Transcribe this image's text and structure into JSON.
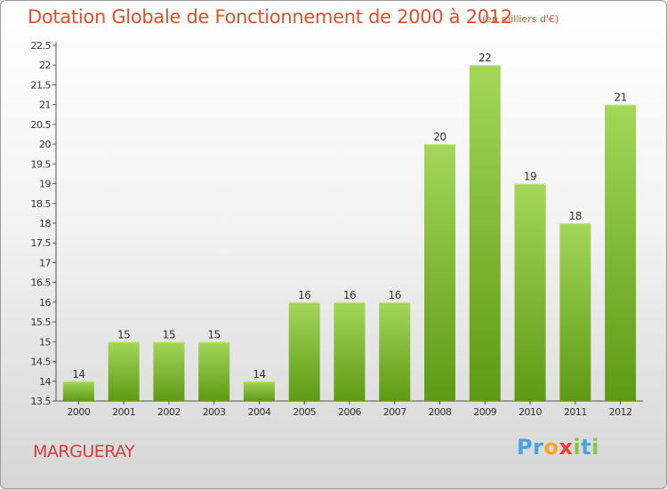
{
  "header": {
    "title": "Dotation Globale de Fonctionnement de 2000 à 2012",
    "subtitle": "(en milliers d'€)"
  },
  "footer": {
    "commune": "MARGUERAY",
    "logo_letters": [
      {
        "ch": "P",
        "color": "#4aa3df"
      },
      {
        "ch": "r",
        "color": "#4aa3df"
      },
      {
        "ch": "o",
        "color": "#f5a623"
      },
      {
        "ch": "x",
        "color": "#e8402a"
      },
      {
        "ch": "i",
        "color": "#8cc63f"
      },
      {
        "ch": "t",
        "color": "#4aa3df"
      },
      {
        "ch": "i",
        "color": "#8cc63f"
      }
    ]
  },
  "chart_data": {
    "type": "bar",
    "title": "Dotation Globale de Fonctionnement de 2000 à 2012",
    "subtitle": "(en milliers d'€)",
    "categories": [
      "2000",
      "2001",
      "2002",
      "2003",
      "2004",
      "2005",
      "2006",
      "2007",
      "2008",
      "2009",
      "2010",
      "2011",
      "2012"
    ],
    "values": [
      14,
      15,
      15,
      15,
      14,
      16,
      16,
      16,
      20,
      22,
      19,
      18,
      21
    ],
    "data_labels": [
      "14",
      "15",
      "15",
      "15",
      "14",
      "16",
      "16",
      "16",
      "20",
      "22",
      "19",
      "18",
      "21"
    ],
    "ylim": [
      13.5,
      22.5
    ],
    "yticks": [
      "13.5",
      "14",
      "14.5",
      "15",
      "15.5",
      "16",
      "16.5",
      "17",
      "17.5",
      "18",
      "18.5",
      "19",
      "19.5",
      "20",
      "20.5",
      "21",
      "21.5",
      "22",
      "22.5"
    ],
    "grid": false,
    "legend": "none",
    "colors": {
      "bar_light": "#a4d65a",
      "bar_dark": "#5e9a14",
      "axis": "#555555",
      "text": "#333333"
    }
  }
}
